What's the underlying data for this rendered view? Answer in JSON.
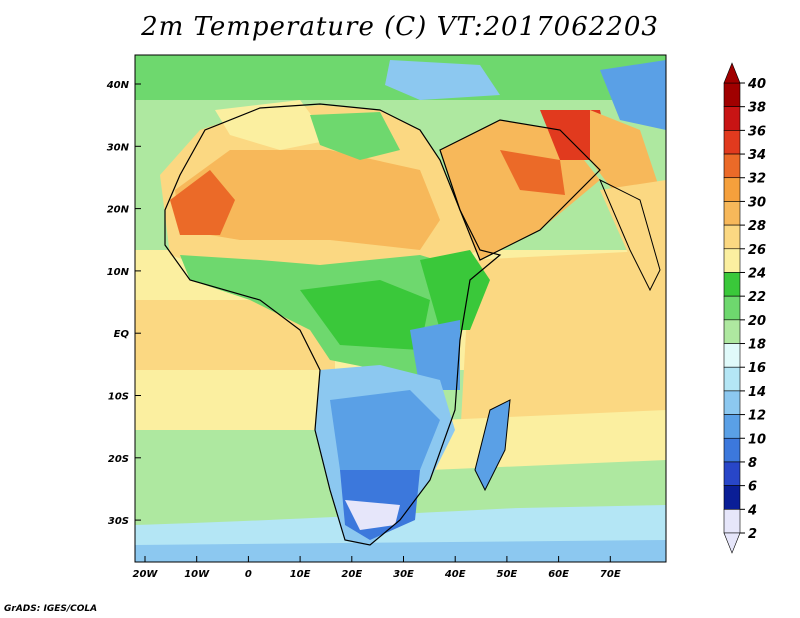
{
  "title": "2m Temperature (C) VT:2017062203",
  "credit": "GrADS: IGES/COLA",
  "lat_labels": [
    "40N",
    "30N",
    "20N",
    "10N",
    "EQ",
    "10S",
    "20S",
    "30S"
  ],
  "lon_labels": [
    "20W",
    "10W",
    "0",
    "10E",
    "20E",
    "30E",
    "40E",
    "50E",
    "60E",
    "70E"
  ],
  "colorbar": {
    "levels": [
      "40",
      "38",
      "36",
      "34",
      "32",
      "30",
      "28",
      "26",
      "24",
      "22",
      "20",
      "18",
      "16",
      "14",
      "12",
      "10",
      "8",
      "6",
      "4",
      "2"
    ],
    "colors": [
      "#a00000",
      "#c81414",
      "#e13a1e",
      "#eb6a28",
      "#f5a03c",
      "#f7b85a",
      "#fbd882",
      "#fbefa0",
      "#3ac83a",
      "#6ed86e",
      "#aee8a0",
      "#e0fafa",
      "#b4e6f5",
      "#8cc8f0",
      "#5aa0e6",
      "#3c78dc",
      "#2846c8",
      "#0a1e96",
      "#e6e6fa"
    ]
  }
}
